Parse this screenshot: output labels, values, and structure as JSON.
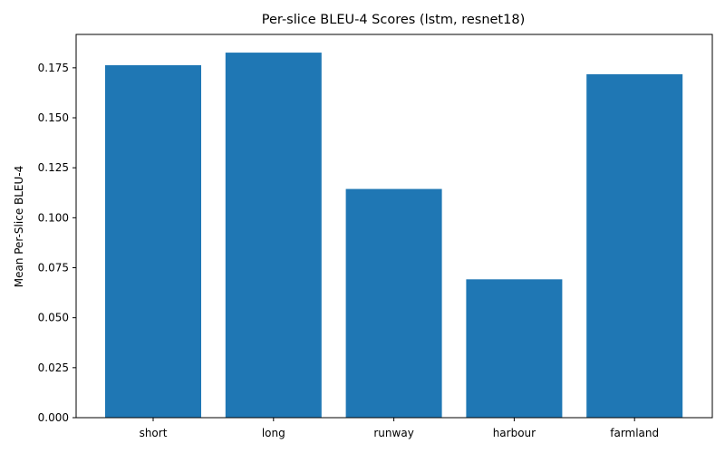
{
  "chart_data": {
    "type": "bar",
    "title": "Per-slice BLEU-4 Scores (lstm, resnet18)",
    "xlabel": "",
    "ylabel": "Mean Per-Slice BLEU-4",
    "categories": [
      "short",
      "long",
      "runway",
      "harbour",
      "farmland"
    ],
    "values": [
      0.1763,
      0.1826,
      0.1144,
      0.0692,
      0.1718
    ],
    "ylim": [
      0,
      0.1917
    ],
    "yticks": [
      "0.000",
      "0.025",
      "0.050",
      "0.075",
      "0.100",
      "0.125",
      "0.150",
      "0.175"
    ],
    "bar_color": "#1f77b4",
    "grid": false,
    "legend": "none"
  }
}
